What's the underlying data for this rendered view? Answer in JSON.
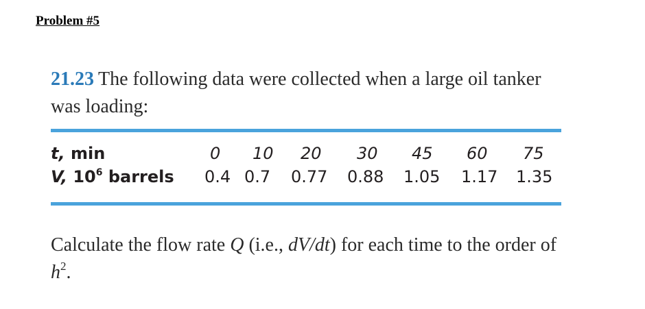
{
  "heading": "Problem #5",
  "problem": {
    "number": "21.23",
    "text": "The following data were collected when a large oil tanker was loading:"
  },
  "table": {
    "row_t": {
      "var": "t,",
      "unit": "min",
      "values": [
        "0",
        "10",
        "20",
        "30",
        "45",
        "60",
        "75"
      ]
    },
    "row_v": {
      "var": "V,",
      "unit_base": "10",
      "unit_exp": "6",
      "unit_rest": "barrels",
      "values": [
        "0.4",
        "0.7",
        "0.77",
        "0.88",
        "1.05",
        "1.17",
        "1.35"
      ]
    }
  },
  "question": {
    "part1": "Calculate the flow rate",
    "q": "Q",
    "part2": "(i.e.,",
    "derivative": "dV/dt",
    "part3": ") for each time to the order of",
    "h": "h",
    "exp": "2",
    "end": "."
  },
  "colors": {
    "accent_blue": "#4aa3dc",
    "number_blue": "#2a7ab8"
  }
}
